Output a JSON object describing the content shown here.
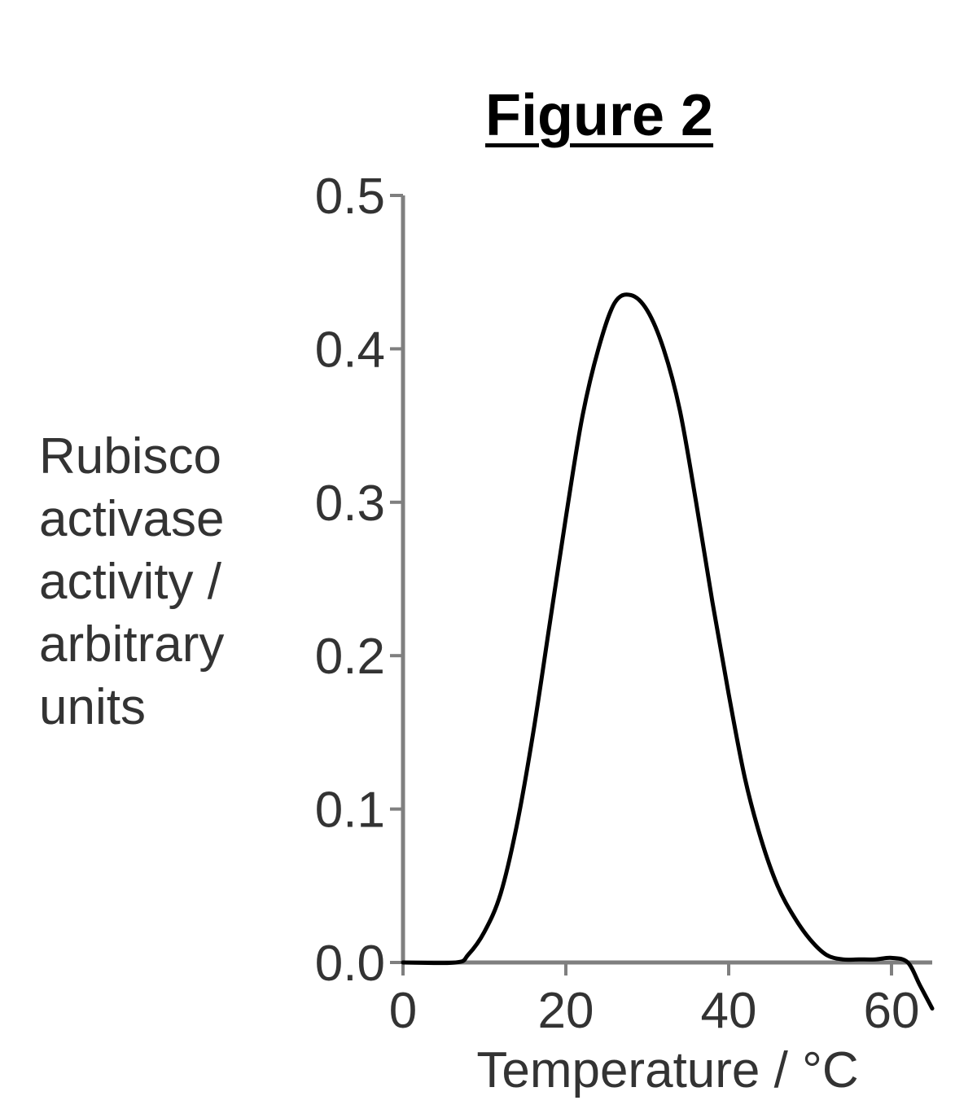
{
  "chart_data": {
    "type": "line",
    "title": "Figure 2",
    "xlabel": "Temperature / °C",
    "ylabel_lines": [
      "Rubisco",
      "activase",
      "activity /",
      "arbitrary",
      "units"
    ],
    "xlim": [
      0,
      65
    ],
    "ylim": [
      0,
      0.5
    ],
    "x_ticks": [
      0,
      20,
      40,
      60
    ],
    "x_tick_labels": [
      "0",
      "20",
      "40",
      "60"
    ],
    "y_ticks": [
      0.0,
      0.1,
      0.2,
      0.3,
      0.4,
      0.5
    ],
    "y_tick_labels": [
      "0.0",
      "0.1",
      "0.2",
      "0.3",
      "0.4",
      "0.5"
    ],
    "grid": false,
    "legend": "none",
    "line_color": "#000000",
    "axis_color": "#7f7f7f",
    "series": [
      {
        "x": [
          0,
          6.5,
          8,
          10,
          12,
          14,
          16,
          18,
          20,
          22,
          24,
          26,
          28,
          30,
          32,
          34,
          36,
          38,
          40,
          42,
          44,
          46,
          48,
          50,
          52,
          54,
          56,
          58,
          60,
          62,
          63.5,
          65
        ],
        "y": [
          0.0,
          0.0,
          0.005,
          0.02,
          0.045,
          0.09,
          0.15,
          0.22,
          0.29,
          0.355,
          0.4,
          0.43,
          0.435,
          0.425,
          0.4,
          0.36,
          0.3,
          0.235,
          0.175,
          0.12,
          0.08,
          0.05,
          0.03,
          0.015,
          0.005,
          0.002,
          0.002,
          0.002,
          0.003,
          0.0,
          -0.015,
          -0.03
        ]
      }
    ]
  }
}
